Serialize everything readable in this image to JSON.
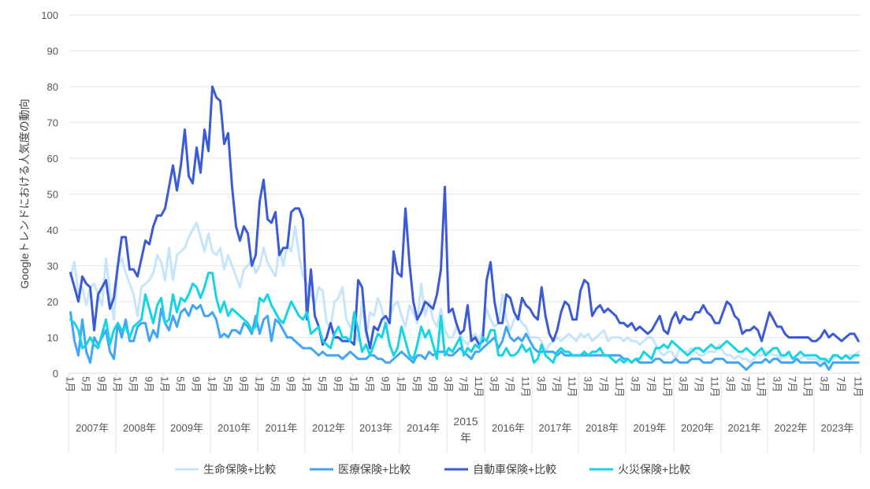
{
  "chart_data": {
    "type": "line",
    "title": "",
    "ylabel": "Googleトレンドにおける人気度の動向",
    "xlabel": "",
    "ylim": [
      0,
      100
    ],
    "yticks": [
      0,
      10,
      20,
      30,
      40,
      50,
      60,
      70,
      80,
      90,
      100
    ],
    "grid": true,
    "legend_position": "bottom",
    "periods": [
      {
        "year": "2007年",
        "months": [
          1,
          2,
          3,
          4,
          5,
          6,
          7,
          8,
          9,
          10,
          11,
          12
        ],
        "ticks": [
          {
            "month": 1,
            "label": "1月"
          },
          {
            "month": 5,
            "label": "5月"
          },
          {
            "month": 9,
            "label": "9月"
          }
        ]
      },
      {
        "year": "2008年",
        "months": [
          1,
          2,
          3,
          4,
          5,
          6,
          7,
          8,
          9,
          10,
          11,
          12
        ],
        "ticks": [
          {
            "month": 1,
            "label": "1月"
          },
          {
            "month": 5,
            "label": "5月"
          },
          {
            "month": 9,
            "label": "9月"
          }
        ]
      },
      {
        "year": "2009年",
        "months": [
          1,
          2,
          3,
          4,
          5,
          6,
          7,
          8,
          9,
          10,
          11,
          12
        ],
        "ticks": [
          {
            "month": 1,
            "label": "1月"
          },
          {
            "month": 5,
            "label": "5月"
          },
          {
            "month": 9,
            "label": "9月"
          }
        ]
      },
      {
        "year": "2010年",
        "months": [
          1,
          2,
          3,
          4,
          5,
          6,
          7,
          8,
          9,
          10,
          11,
          12
        ],
        "ticks": [
          {
            "month": 1,
            "label": "1月"
          },
          {
            "month": 5,
            "label": "5月"
          },
          {
            "month": 9,
            "label": "9月"
          }
        ]
      },
      {
        "year": "2011年",
        "months": [
          1,
          2,
          3,
          4,
          5,
          6,
          7,
          8,
          9,
          10,
          11,
          12
        ],
        "ticks": [
          {
            "month": 1,
            "label": "1月"
          },
          {
            "month": 5,
            "label": "5月"
          },
          {
            "month": 9,
            "label": "9月"
          }
        ]
      },
      {
        "year": "2012年",
        "months": [
          1,
          2,
          3,
          4,
          5,
          6,
          7,
          8,
          9,
          10,
          11,
          12
        ],
        "ticks": [
          {
            "month": 1,
            "label": "1月"
          },
          {
            "month": 5,
            "label": "5月"
          },
          {
            "month": 9,
            "label": "9月"
          }
        ]
      },
      {
        "year": "2013年",
        "months": [
          1,
          2,
          3,
          4,
          5,
          6,
          7,
          8,
          9,
          10,
          11,
          12
        ],
        "ticks": [
          {
            "month": 1,
            "label": "1月"
          },
          {
            "month": 5,
            "label": "5月"
          },
          {
            "month": 9,
            "label": "9月"
          }
        ]
      },
      {
        "year": "2014年",
        "months": [
          1,
          2,
          3,
          4,
          5,
          6,
          7,
          8,
          9,
          10,
          11,
          12
        ],
        "ticks": [
          {
            "month": 1,
            "label": "1月"
          },
          {
            "month": 5,
            "label": "5月"
          },
          {
            "month": 9,
            "label": "9月"
          }
        ]
      },
      {
        "year": "2015年",
        "months": [
          3,
          4,
          5,
          6,
          7,
          8,
          9,
          10,
          11,
          12
        ],
        "ticks": [
          {
            "month": 3,
            "label": "3月"
          },
          {
            "month": 7,
            "label": "7月"
          },
          {
            "month": 11,
            "label": "11月"
          }
        ]
      },
      {
        "year": "2016年",
        "months": [
          1,
          2,
          3,
          4,
          5,
          6,
          7,
          8,
          9,
          10,
          11,
          12
        ],
        "ticks": [
          {
            "month": 3,
            "label": "3月"
          },
          {
            "month": 7,
            "label": "7月"
          },
          {
            "month": 11,
            "label": "11月"
          }
        ]
      },
      {
        "year": "2017年",
        "months": [
          1,
          2,
          3,
          4,
          5,
          6,
          7,
          8,
          9,
          10,
          11,
          12
        ],
        "ticks": [
          {
            "month": 3,
            "label": "3月"
          },
          {
            "month": 7,
            "label": "7月"
          },
          {
            "month": 11,
            "label": "11月"
          }
        ]
      },
      {
        "year": "2018年",
        "months": [
          1,
          2,
          3,
          4,
          5,
          6,
          7,
          8,
          9,
          10,
          11,
          12
        ],
        "ticks": [
          {
            "month": 3,
            "label": "3月"
          },
          {
            "month": 7,
            "label": "7月"
          },
          {
            "month": 11,
            "label": "11月"
          }
        ]
      },
      {
        "year": "2019年",
        "months": [
          1,
          2,
          3,
          4,
          5,
          6,
          7,
          8,
          9,
          10,
          11,
          12
        ],
        "ticks": [
          {
            "month": 3,
            "label": "3月"
          },
          {
            "month": 7,
            "label": "7月"
          },
          {
            "month": 11,
            "label": "11月"
          }
        ]
      },
      {
        "year": "2020年",
        "months": [
          1,
          2,
          3,
          4,
          5,
          6,
          7,
          8,
          9,
          10,
          11,
          12
        ],
        "ticks": [
          {
            "month": 3,
            "label": "3月"
          },
          {
            "month": 7,
            "label": "7月"
          },
          {
            "month": 11,
            "label": "11月"
          }
        ]
      },
      {
        "year": "2021年",
        "months": [
          1,
          2,
          3,
          4,
          5,
          6,
          7,
          8,
          9,
          10,
          11,
          12
        ],
        "ticks": [
          {
            "month": 3,
            "label": "3月"
          },
          {
            "month": 7,
            "label": "7月"
          },
          {
            "month": 11,
            "label": "11月"
          }
        ]
      },
      {
        "year": "2022年",
        "months": [
          1,
          2,
          3,
          4,
          5,
          6,
          7,
          8,
          9,
          10,
          11,
          12
        ],
        "ticks": [
          {
            "month": 3,
            "label": "3月"
          },
          {
            "month": 7,
            "label": "7月"
          },
          {
            "month": 11,
            "label": "11月"
          }
        ]
      },
      {
        "year": "2023年",
        "months": [
          1,
          2,
          3,
          4,
          5,
          6,
          7,
          8,
          9,
          10,
          11
        ],
        "ticks": [
          {
            "month": 3,
            "label": "3月"
          },
          {
            "month": 7,
            "label": "7月"
          },
          {
            "month": 11,
            "label": "11月"
          }
        ]
      }
    ],
    "series": [
      {
        "name": "生命保険+比較",
        "color": "#c6e5fb",
        "values": [
          27,
          31,
          22,
          24,
          19,
          24,
          25,
          22,
          19,
          32,
          23,
          15,
          30,
          32,
          28,
          25,
          22,
          16,
          24,
          25,
          26,
          28,
          33,
          31,
          26,
          35,
          26,
          33,
          34,
          35,
          38,
          40,
          42,
          38,
          34,
          39,
          34,
          33,
          35,
          29,
          33,
          30,
          27,
          24,
          29,
          30,
          32,
          28,
          30,
          35,
          31,
          29,
          27,
          35,
          30,
          36,
          34,
          41,
          33,
          27,
          25,
          22,
          19,
          24,
          23,
          14,
          13,
          20,
          21,
          24,
          15,
          13,
          12,
          9,
          20,
          10,
          17,
          16,
          21,
          18,
          13,
          15,
          19,
          20,
          16,
          13,
          19,
          17,
          14,
          25,
          16,
          20,
          15,
          13,
          18,
          12,
          10,
          10,
          13,
          11,
          9,
          8,
          10,
          11,
          9,
          12,
          18,
          15,
          13,
          14,
          22,
          15,
          12,
          15,
          16,
          14,
          13,
          10,
          10,
          10,
          9,
          6,
          8,
          9,
          10,
          9,
          10,
          11,
          10,
          9,
          11,
          10,
          11,
          9,
          10,
          11,
          12,
          9,
          10,
          10,
          10,
          9,
          10,
          9,
          9,
          8,
          9,
          10,
          10,
          8,
          6,
          5,
          6,
          6,
          4,
          7,
          6,
          6,
          7,
          6,
          5,
          5,
          6,
          6,
          6,
          8,
          6,
          5,
          5,
          4,
          5,
          4,
          4,
          3,
          4,
          5,
          5,
          6,
          6,
          5,
          5,
          4,
          5,
          5,
          4,
          4,
          4,
          5,
          4,
          4,
          4,
          3,
          4,
          4,
          4,
          5,
          4,
          5,
          5,
          5,
          6
        ]
      },
      {
        "name": "医療保険+比較",
        "color": "#42a5f5",
        "values": [
          17,
          9,
          5,
          15,
          6,
          3,
          10,
          8,
          10,
          12,
          6,
          4,
          14,
          10,
          15,
          9,
          9,
          13,
          14,
          14,
          9,
          12,
          10,
          18,
          14,
          12,
          16,
          13,
          17,
          18,
          16,
          19,
          18,
          19,
          16,
          16,
          17,
          15,
          10,
          11,
          10,
          12,
          12,
          11,
          14,
          13,
          11,
          16,
          11,
          15,
          16,
          9,
          15,
          14,
          12,
          10,
          10,
          9,
          8,
          7,
          7,
          7,
          6,
          5,
          6,
          5,
          5,
          5,
          5,
          4,
          5,
          6,
          5,
          4,
          4,
          4,
          5,
          5,
          4,
          4,
          3,
          3,
          4,
          5,
          6,
          5,
          4,
          3,
          5,
          5,
          4,
          6,
          5,
          6,
          6,
          6,
          5,
          5,
          6,
          7,
          6,
          5,
          4,
          6,
          6,
          7,
          8,
          9,
          10,
          7,
          9,
          13,
          10,
          9,
          10,
          9,
          11,
          9,
          7,
          6,
          6,
          6,
          6,
          6,
          5,
          6,
          5,
          5,
          5,
          5,
          5,
          5,
          5,
          5,
          5,
          5,
          5,
          5,
          5,
          5,
          5,
          4,
          4,
          3,
          4,
          3,
          3,
          3,
          3,
          4,
          4,
          3,
          3,
          3,
          4,
          3,
          3,
          3,
          4,
          4,
          4,
          3,
          3,
          3,
          4,
          4,
          4,
          3,
          3,
          3,
          3,
          2,
          1,
          2,
          3,
          3,
          3,
          4,
          3,
          4,
          4,
          3,
          3,
          3,
          3,
          4,
          3,
          3,
          3,
          3,
          3,
          2,
          3,
          1,
          3,
          3,
          3,
          3,
          3,
          3,
          3
        ]
      },
      {
        "name": "自動車保険+比較",
        "color": "#3b5bd6",
        "values": [
          28,
          24,
          20,
          27,
          25,
          24,
          12,
          22,
          24,
          26,
          18,
          21,
          30,
          38,
          38,
          29,
          29,
          27,
          32,
          37,
          36,
          41,
          44,
          44,
          46,
          52,
          58,
          51,
          58,
          68,
          55,
          53,
          63,
          56,
          68,
          62,
          80,
          77,
          76,
          64,
          67,
          52,
          41,
          37,
          41,
          39,
          30,
          33,
          48,
          54,
          43,
          42,
          45,
          33,
          35,
          35,
          45,
          46,
          46,
          43,
          15,
          29,
          16,
          13,
          8,
          10,
          14,
          10,
          10,
          9,
          9,
          9,
          8,
          26,
          24,
          12,
          7,
          13,
          12,
          15,
          16,
          14,
          34,
          28,
          27,
          46,
          31,
          20,
          15,
          17,
          20,
          19,
          18,
          22,
          29,
          52,
          17,
          18,
          14,
          11,
          12,
          19,
          9,
          10,
          8,
          9,
          26,
          31,
          20,
          14,
          14,
          22,
          21,
          17,
          15,
          21,
          19,
          18,
          16,
          15,
          24,
          16,
          11,
          9,
          12,
          17,
          20,
          19,
          15,
          15,
          23,
          26,
          25,
          16,
          18,
          19,
          17,
          18,
          17,
          16,
          14,
          14,
          13,
          14,
          12,
          13,
          12,
          11,
          12,
          14,
          16,
          12,
          11,
          15,
          17,
          14,
          16,
          15,
          15,
          17,
          17,
          19,
          17,
          16,
          14,
          14,
          17,
          20,
          19,
          16,
          15,
          11,
          12,
          12,
          13,
          12,
          9,
          13,
          17,
          15,
          13,
          13,
          11,
          10,
          10,
          10,
          10,
          10,
          10,
          9,
          9,
          10,
          12,
          10,
          11,
          10,
          9,
          10,
          11,
          11,
          9
        ]
      },
      {
        "name": "火災保険+比較",
        "color": "#14d4e6",
        "values": [
          15,
          14,
          12,
          7,
          8,
          10,
          8,
          7,
          11,
          15,
          8,
          12,
          14,
          12,
          13,
          10,
          13,
          14,
          15,
          22,
          18,
          14,
          19,
          21,
          14,
          15,
          22,
          17,
          21,
          20,
          22,
          25,
          24,
          21,
          24,
          28,
          28,
          21,
          17,
          20,
          16,
          18,
          17,
          16,
          15,
          14,
          12,
          13,
          21,
          20,
          22,
          19,
          17,
          15,
          14,
          17,
          20,
          18,
          16,
          15,
          17,
          11,
          12,
          13,
          9,
          8,
          7,
          11,
          13,
          10,
          10,
          9,
          17,
          12,
          6,
          8,
          5,
          8,
          11,
          10,
          14,
          8,
          5,
          7,
          13,
          9,
          5,
          4,
          8,
          13,
          10,
          12,
          8,
          4,
          16,
          5,
          7,
          6,
          8,
          10,
          5,
          7,
          6,
          8,
          7,
          10,
          9,
          12,
          12,
          5,
          5,
          7,
          5,
          5,
          6,
          8,
          6,
          7,
          3,
          4,
          8,
          5,
          4,
          3,
          6,
          7,
          6,
          6,
          5,
          5,
          5,
          6,
          5,
          6,
          6,
          7,
          5,
          5,
          4,
          3,
          4,
          3,
          4,
          3,
          4,
          4,
          6,
          5,
          4,
          7,
          7,
          8,
          7,
          9,
          8,
          7,
          6,
          5,
          6,
          7,
          7,
          6,
          7,
          8,
          7,
          7,
          8,
          9,
          8,
          7,
          6,
          6,
          7,
          6,
          5,
          6,
          7,
          5,
          6,
          7,
          7,
          5,
          5,
          6,
          4,
          5,
          6,
          5,
          5,
          5,
          5,
          4,
          4,
          3,
          5,
          5,
          4,
          5,
          4,
          5,
          5
        ]
      }
    ]
  }
}
